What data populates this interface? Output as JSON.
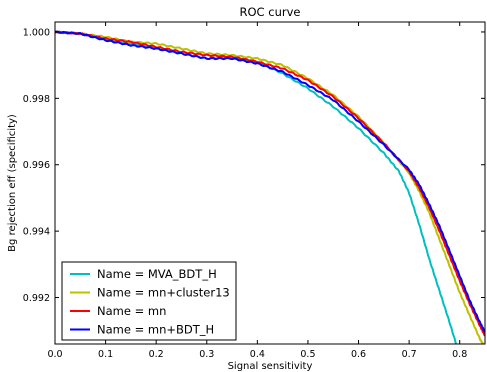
{
  "chart_data": {
    "type": "line",
    "title": "ROC curve",
    "xlabel": "Signal sensitivity",
    "ylabel": "Bg rejection eff (specificity)",
    "xlim": [
      0.0,
      0.85
    ],
    "ylim": [
      0.9906,
      1.0003
    ],
    "x_ticks": [
      0.0,
      0.1,
      0.2,
      0.3,
      0.4,
      0.5,
      0.6,
      0.7,
      0.8
    ],
    "x_tick_labels": [
      "0.0",
      "0.1",
      "0.2",
      "0.3",
      "0.4",
      "0.5",
      "0.6",
      "0.7",
      "0.8"
    ],
    "y_ticks": [
      0.992,
      0.994,
      0.996,
      0.998,
      1.0
    ],
    "y_tick_labels": [
      "0.992",
      "0.994",
      "0.996",
      "0.998",
      "1.000"
    ],
    "grid": false,
    "legend_position": "bottom-left",
    "series": [
      {
        "name": "Name = MVA_BDT_H",
        "color": "#00bfbf",
        "points": [
          [
            0.0,
            1.0
          ],
          [
            0.05,
            0.99995
          ],
          [
            0.1,
            0.99975
          ],
          [
            0.15,
            0.99965
          ],
          [
            0.2,
            0.9995
          ],
          [
            0.25,
            0.99935
          ],
          [
            0.3,
            0.9992
          ],
          [
            0.35,
            0.99925
          ],
          [
            0.4,
            0.9991
          ],
          [
            0.45,
            0.99875
          ],
          [
            0.5,
            0.9983
          ],
          [
            0.55,
            0.99775
          ],
          [
            0.6,
            0.9971
          ],
          [
            0.65,
            0.99635
          ],
          [
            0.68,
            0.9958
          ],
          [
            0.7,
            0.99515
          ],
          [
            0.72,
            0.9942
          ],
          [
            0.74,
            0.99315
          ],
          [
            0.76,
            0.9922
          ],
          [
            0.78,
            0.99125
          ],
          [
            0.8,
            0.99025
          ],
          [
            0.82,
            0.9892
          ]
        ]
      },
      {
        "name": "Name = mn+cluster13",
        "color": "#bfbf00",
        "points": [
          [
            0.0,
            1.0
          ],
          [
            0.05,
            0.99995
          ],
          [
            0.1,
            0.99985
          ],
          [
            0.15,
            0.9997
          ],
          [
            0.2,
            0.99965
          ],
          [
            0.25,
            0.9995
          ],
          [
            0.3,
            0.99935
          ],
          [
            0.35,
            0.9993
          ],
          [
            0.4,
            0.9992
          ],
          [
            0.45,
            0.999
          ],
          [
            0.5,
            0.9986
          ],
          [
            0.55,
            0.9981
          ],
          [
            0.6,
            0.99745
          ],
          [
            0.65,
            0.99665
          ],
          [
            0.7,
            0.99575
          ],
          [
            0.72,
            0.9952
          ],
          [
            0.74,
            0.99455
          ],
          [
            0.76,
            0.99375
          ],
          [
            0.78,
            0.99295
          ],
          [
            0.8,
            0.99215
          ],
          [
            0.82,
            0.99145
          ],
          [
            0.84,
            0.99075
          ],
          [
            0.85,
            0.9905
          ]
        ]
      },
      {
        "name": "Name = mn",
        "color": "#ff0000",
        "points": [
          [
            0.0,
            1.0
          ],
          [
            0.05,
            0.99995
          ],
          [
            0.1,
            0.9998
          ],
          [
            0.15,
            0.9997
          ],
          [
            0.2,
            0.99955
          ],
          [
            0.25,
            0.9994
          ],
          [
            0.3,
            0.9993
          ],
          [
            0.35,
            0.99925
          ],
          [
            0.4,
            0.9991
          ],
          [
            0.45,
            0.9989
          ],
          [
            0.5,
            0.99855
          ],
          [
            0.55,
            0.99805
          ],
          [
            0.6,
            0.9974
          ],
          [
            0.65,
            0.99665
          ],
          [
            0.7,
            0.9958
          ],
          [
            0.72,
            0.9953
          ],
          [
            0.74,
            0.9947
          ],
          [
            0.76,
            0.994
          ],
          [
            0.78,
            0.99325
          ],
          [
            0.8,
            0.9925
          ],
          [
            0.82,
            0.9918
          ],
          [
            0.84,
            0.99115
          ],
          [
            0.85,
            0.99085
          ]
        ]
      },
      {
        "name": "Name = mn+BDT_H",
        "color": "#0000ff",
        "points": [
          [
            0.0,
            1.0
          ],
          [
            0.05,
            0.99995
          ],
          [
            0.1,
            0.99975
          ],
          [
            0.15,
            0.9996
          ],
          [
            0.2,
            0.9995
          ],
          [
            0.25,
            0.99935
          ],
          [
            0.3,
            0.9992
          ],
          [
            0.35,
            0.9992
          ],
          [
            0.4,
            0.99905
          ],
          [
            0.45,
            0.9988
          ],
          [
            0.5,
            0.9984
          ],
          [
            0.55,
            0.99795
          ],
          [
            0.6,
            0.9973
          ],
          [
            0.65,
            0.9966
          ],
          [
            0.7,
            0.99585
          ],
          [
            0.72,
            0.9954
          ],
          [
            0.74,
            0.9948
          ],
          [
            0.76,
            0.99415
          ],
          [
            0.78,
            0.9934
          ],
          [
            0.8,
            0.99265
          ],
          [
            0.82,
            0.9919
          ],
          [
            0.84,
            0.99125
          ],
          [
            0.85,
            0.99095
          ]
        ]
      }
    ]
  }
}
